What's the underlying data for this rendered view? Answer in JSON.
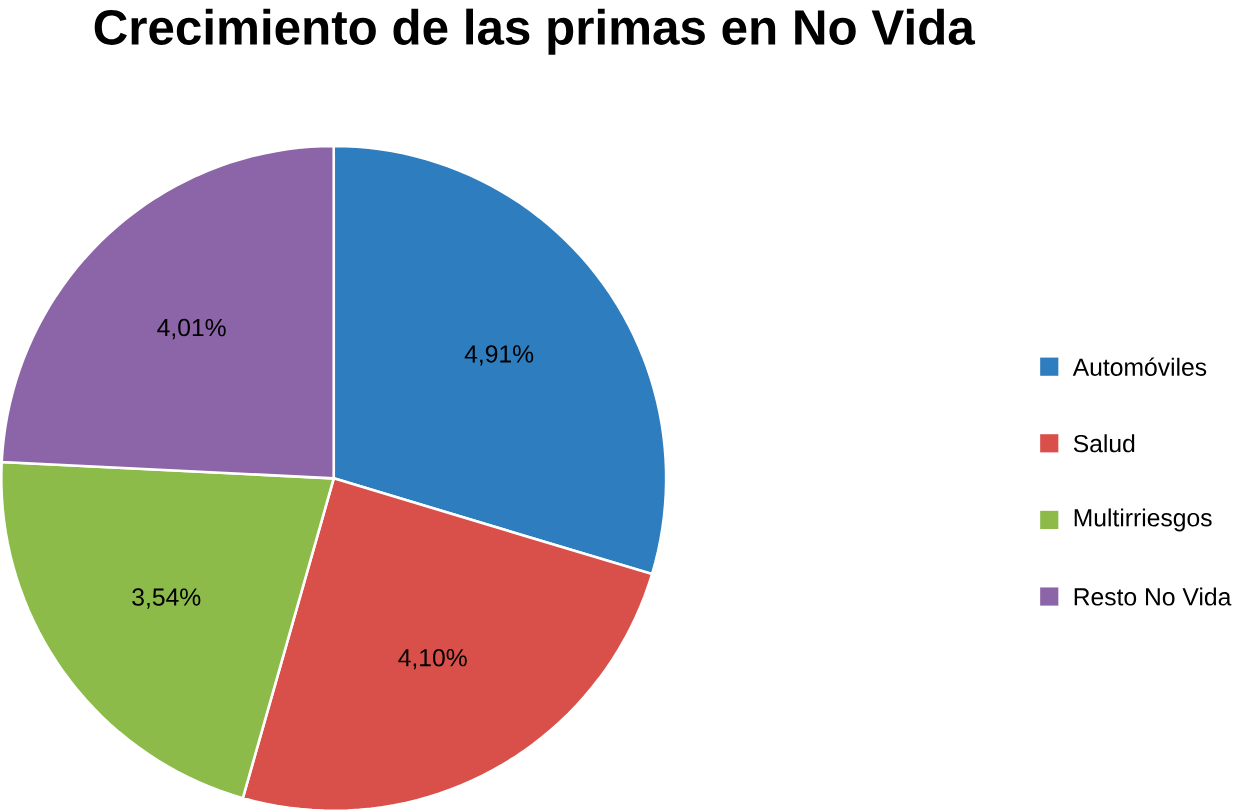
{
  "chart_data": {
    "type": "pie",
    "title": "Crecimiento de las primas en No Vida",
    "categories": [
      "Automóviles",
      "Salud",
      "Multirriesgos",
      "Resto No Vida"
    ],
    "values": [
      4.91,
      4.1,
      3.54,
      4.01
    ],
    "value_labels": [
      "4,91%",
      "4,10%",
      "3,54%",
      "4,01%"
    ],
    "colors": [
      "#2e7ebf",
      "#d9504a",
      "#8cbb4a",
      "#8c64a8"
    ],
    "legend": "right"
  }
}
